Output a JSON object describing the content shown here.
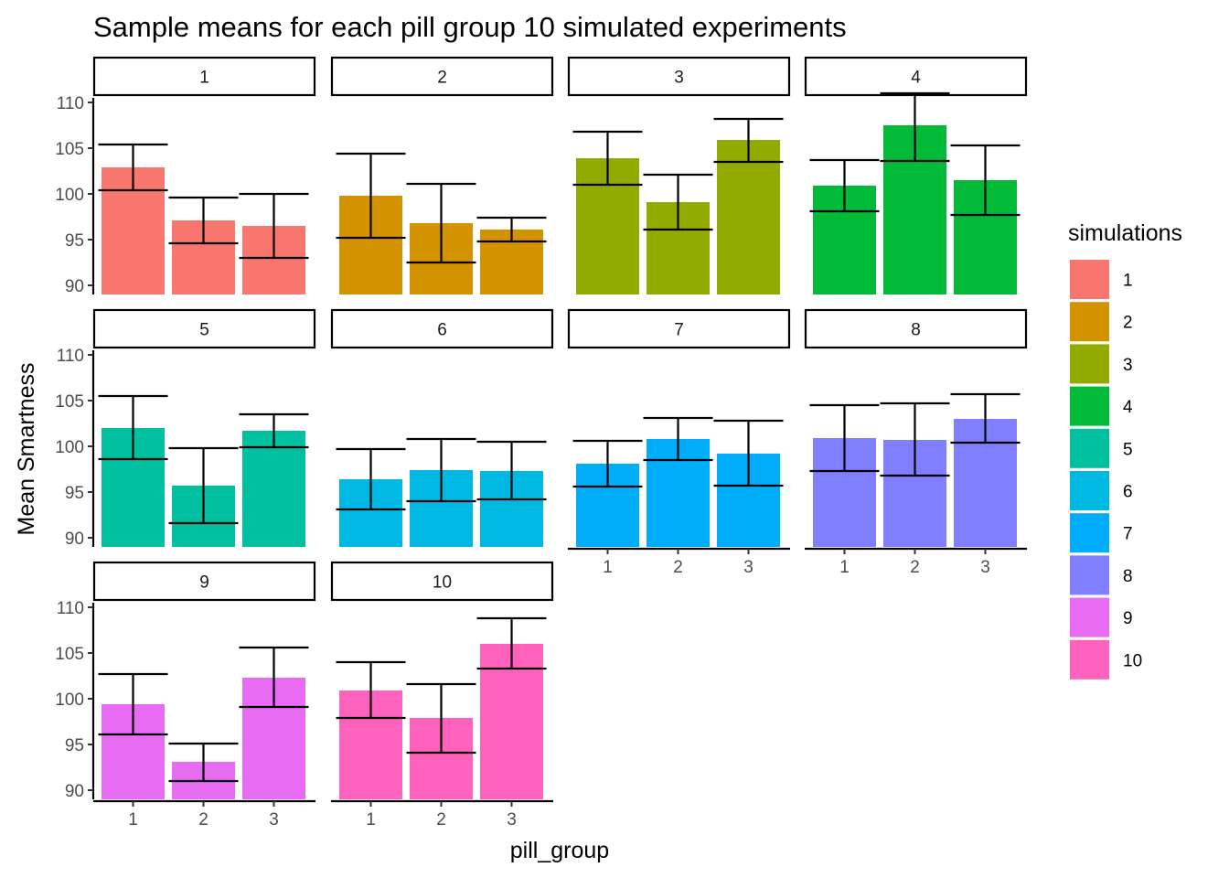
{
  "chart_data": {
    "type": "bar",
    "title": "Sample means for each pill group 10 simulated experiments",
    "xlabel": "pill_group",
    "ylabel": "Mean Smartness",
    "ylim": [
      89,
      110.5
    ],
    "yticks": [
      90,
      95,
      100,
      105,
      110
    ],
    "categories": [
      "1",
      "2",
      "3"
    ],
    "facet_layout": "4 columns x 3 rows",
    "legend": {
      "title": "simulations",
      "placement": "right"
    },
    "grid": false,
    "series": [
      {
        "name": "1",
        "color": "#F8766D",
        "values": [
          102.9,
          97.1,
          96.5
        ],
        "error_low": [
          100.4,
          94.6,
          93.0
        ],
        "error_high": [
          105.4,
          99.6,
          100.0
        ]
      },
      {
        "name": "2",
        "color": "#D39200",
        "values": [
          99.8,
          96.8,
          96.1
        ],
        "error_low": [
          95.2,
          92.5,
          94.8
        ],
        "error_high": [
          104.4,
          101.1,
          97.4
        ]
      },
      {
        "name": "3",
        "color": "#93AA00",
        "values": [
          103.9,
          99.1,
          105.9
        ],
        "error_low": [
          101.0,
          96.1,
          103.5
        ],
        "error_high": [
          106.8,
          102.1,
          108.2
        ]
      },
      {
        "name": "4",
        "color": "#00BA38",
        "values": [
          100.9,
          107.5,
          101.5
        ],
        "error_low": [
          98.1,
          103.6,
          97.7
        ],
        "error_high": [
          103.7,
          111.0,
          105.3
        ]
      },
      {
        "name": "5",
        "color": "#00C19F",
        "values": [
          102.0,
          95.7,
          101.7
        ],
        "error_low": [
          98.6,
          91.6,
          99.9
        ],
        "error_high": [
          105.5,
          99.8,
          103.5
        ]
      },
      {
        "name": "6",
        "color": "#00B9E3",
        "values": [
          96.4,
          97.4,
          97.3
        ],
        "error_low": [
          93.1,
          94.0,
          94.2
        ],
        "error_high": [
          99.7,
          100.8,
          100.5
        ]
      },
      {
        "name": "7",
        "color": "#00ADFA",
        "values": [
          98.1,
          100.8,
          99.2
        ],
        "error_low": [
          95.6,
          98.5,
          95.7
        ],
        "error_high": [
          100.6,
          103.1,
          102.8
        ]
      },
      {
        "name": "8",
        "color": "#7F7FFF",
        "values": [
          100.9,
          100.7,
          103.0
        ],
        "error_low": [
          97.3,
          96.8,
          100.4
        ],
        "error_high": [
          104.5,
          104.7,
          105.7
        ]
      },
      {
        "name": "9",
        "color": "#E76BF3",
        "values": [
          99.4,
          93.1,
          102.3
        ],
        "error_low": [
          96.1,
          91.0,
          99.1
        ],
        "error_high": [
          102.7,
          95.1,
          105.6
        ]
      },
      {
        "name": "10",
        "color": "#FF62BC",
        "values": [
          100.9,
          97.9,
          106.0
        ],
        "error_low": [
          97.9,
          94.1,
          103.3
        ],
        "error_high": [
          104.0,
          101.6,
          108.8
        ]
      }
    ]
  }
}
